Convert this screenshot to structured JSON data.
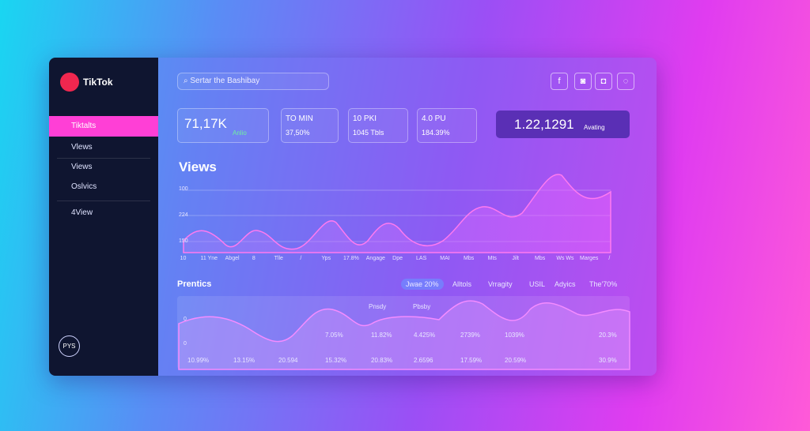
{
  "sidebar": {
    "logo": "TikTok",
    "nav": [
      "Tiktalts",
      "Vlews",
      "Views",
      "Oslvics",
      "4View"
    ],
    "footer": "PYS"
  },
  "search": {
    "placeholder": "Sertar the Bashibay"
  },
  "stats": [
    {
      "value": "71,17K",
      "note": "Anlio"
    },
    {
      "title": "TO MIN",
      "value": "37,50%"
    },
    {
      "title": "10 PKI",
      "value": "1045 Tbls"
    },
    {
      "title": "4.0 PU",
      "value": "184.39%"
    }
  ],
  "highlight": {
    "value": "1.22,1291",
    "note": "Avating"
  },
  "views": {
    "title": "Views",
    "y_labels": [
      "100",
      "224",
      "150"
    ],
    "x_labels": [
      "10",
      "11 Yne",
      "Abgel",
      "8",
      "Tlle",
      "/",
      "Yps",
      "17.8%",
      "Angage",
      "Dpe",
      "LAS",
      "MAI",
      "Mbs",
      "Mts",
      "Jilt",
      "Mbs",
      "Ws Ws",
      "Marges",
      "/"
    ]
  },
  "prentics": {
    "title": "Prentics",
    "filters": [
      "Jwae 20%",
      "Alltols",
      "Vrragity",
      "USIL",
      "Adyics",
      "The'70%"
    ],
    "series_labels": [
      "Pnsdy",
      "Pbsby"
    ],
    "y_labels": [
      "0",
      "0"
    ],
    "row1": [
      "7.05%",
      "11.82%",
      "4.425%",
      "2739%",
      "1039%",
      "20.3%"
    ],
    "row2": [
      "10.99%",
      "13.15%",
      "20.594",
      "15.32%",
      "20.83%",
      "2.6596",
      "17.59%",
      "20.59%",
      "30.9%"
    ]
  }
}
